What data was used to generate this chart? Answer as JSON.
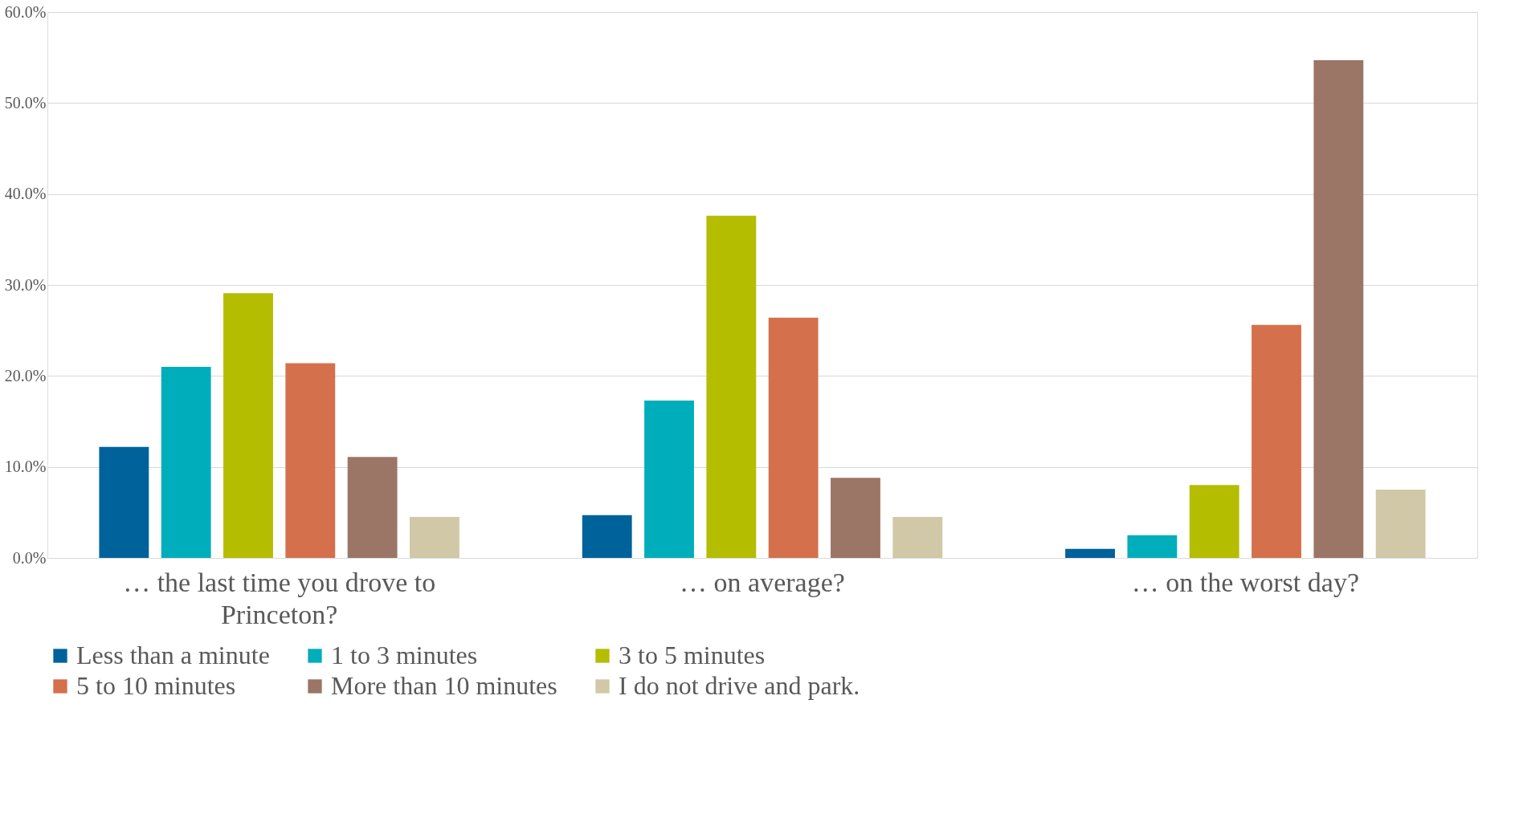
{
  "chart_data": {
    "type": "bar",
    "categories": [
      "… the last time you drove to Princeton?",
      "… on average?",
      "… on the worst day?"
    ],
    "series": [
      {
        "name": "Less than a minute",
        "color": "#00629b",
        "values": [
          12.2,
          4.7,
          1.0
        ]
      },
      {
        "name": "1 to 3 minutes",
        "color": "#00aebb",
        "values": [
          21.0,
          17.3,
          2.5
        ]
      },
      {
        "name": "3 to 5 minutes",
        "color": "#b5bd00",
        "values": [
          29.1,
          37.6,
          8.0
        ]
      },
      {
        "name": "5 to 10 minutes",
        "color": "#d4704c",
        "values": [
          21.4,
          26.4,
          25.6
        ]
      },
      {
        "name": "More than 10 minutes",
        "color": "#9b7565",
        "values": [
          11.1,
          8.8,
          54.7
        ]
      },
      {
        "name": "I do not drive and park.",
        "color": "#d0c8a6",
        "values": [
          4.5,
          4.5,
          7.5
        ]
      }
    ],
    "ylim": [
      0,
      60
    ],
    "yticks": [
      {
        "value": 0,
        "label": "0.0%"
      },
      {
        "value": 10,
        "label": "10.0%"
      },
      {
        "value": 20,
        "label": "20.0%"
      },
      {
        "value": 30,
        "label": "30.0%"
      },
      {
        "value": 40,
        "label": "40.0%"
      },
      {
        "value": 50,
        "label": "50.0%"
      },
      {
        "value": 60,
        "label": "60.0%"
      }
    ],
    "grid": "y",
    "legend": "bottom"
  }
}
